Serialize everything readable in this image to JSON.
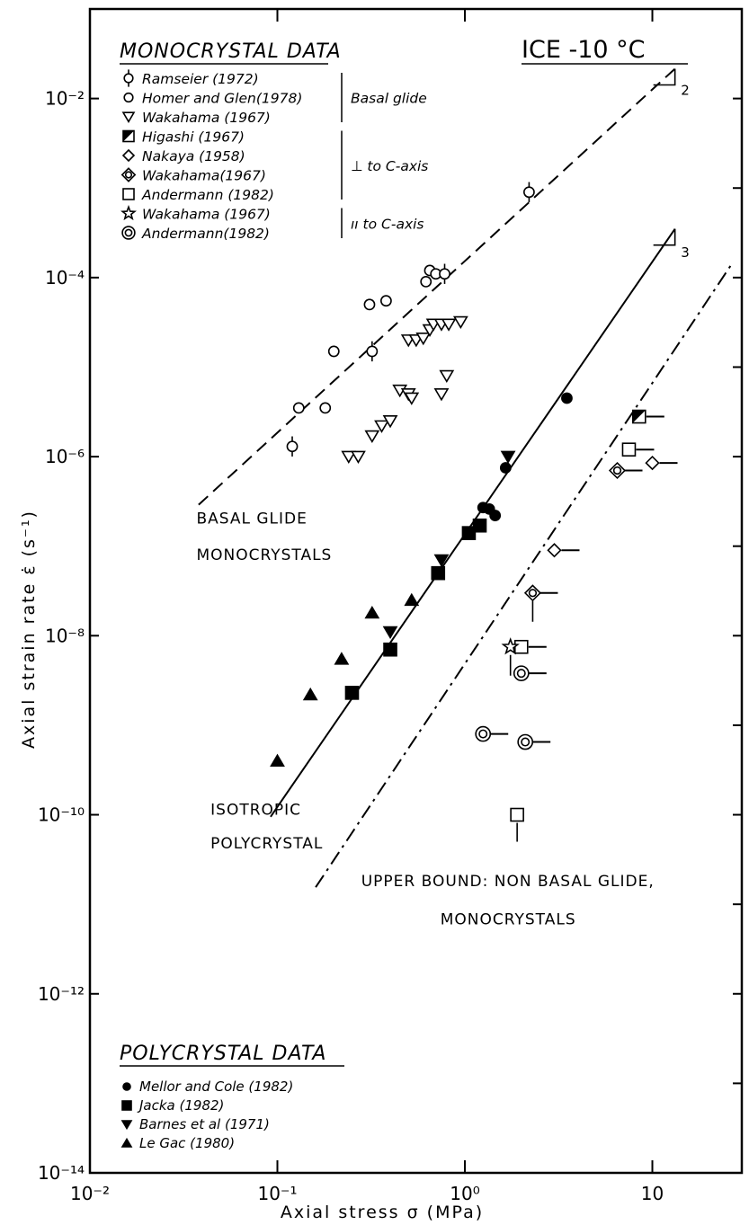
{
  "chart_data": {
    "type": "scatter",
    "title": "ICE  -10 °C",
    "xlabel": "Axial stress σ (MPa)",
    "ylabel": "Axial strain rate ε̇ (s⁻¹)",
    "x_scale": "log",
    "y_scale": "log",
    "xlim": [
      0.01,
      30
    ],
    "ylim": [
      1e-14,
      0.1
    ],
    "x_ticks": [
      {
        "v": 0.01,
        "label": "10⁻²"
      },
      {
        "v": 0.1,
        "label": "10⁻¹"
      },
      {
        "v": 1,
        "label": "10⁰"
      },
      {
        "v": 10,
        "label": "10"
      }
    ],
    "y_ticks": [
      {
        "v": 0.01,
        "label": "10⁻²"
      },
      {
        "v": 0.0001,
        "label": "10⁻⁴"
      },
      {
        "v": 1e-06,
        "label": "10⁻⁶"
      },
      {
        "v": 1e-08,
        "label": "10⁻⁸"
      },
      {
        "v": 1e-10,
        "label": "10⁻¹⁰"
      },
      {
        "v": 1e-12,
        "label": "10⁻¹²"
      },
      {
        "v": 1e-14,
        "label": "10⁻¹⁴"
      }
    ],
    "grid": false,
    "mono_legend_title": "MONOCRYSTAL  DATA",
    "mono_legend": [
      {
        "marker": "pipe-circle",
        "label": "Ramseier (1972)"
      },
      {
        "marker": "open-circle",
        "label": "Homer and Glen(1978)"
      },
      {
        "marker": "open-down-triangle",
        "label": "Wakahama (1967)"
      },
      {
        "marker": "half-square",
        "label": "Higashi (1967)"
      },
      {
        "marker": "open-diamond",
        "label": "Nakaya (1958)"
      },
      {
        "marker": "diamond-circle",
        "label": "Wakahama(1967)"
      },
      {
        "marker": "open-square",
        "label": "Andermann (1982)"
      },
      {
        "marker": "open-star",
        "label": "Wakahama (1967)"
      },
      {
        "marker": "double-circle",
        "label": "Andermann(1982)"
      }
    ],
    "mono_groups": [
      {
        "label": "Basal glide",
        "rows": [
          0,
          2
        ]
      },
      {
        "label": "⊥ to C-axis",
        "rows": [
          3,
          6
        ]
      },
      {
        "label": "ıı to C-axis",
        "rows": [
          7,
          8
        ]
      }
    ],
    "poly_legend_title": "POLYCRYSTAL  DATA",
    "poly_legend": [
      {
        "marker": "filled-circle",
        "label": "Mellor and Cole (1982)"
      },
      {
        "marker": "filled-square",
        "label": "Jacka (1982)"
      },
      {
        "marker": "filled-down-triangle",
        "label": "Barnes et al (1971)"
      },
      {
        "marker": "filled-up-triangle",
        "label": "Le Gac (1980)"
      }
    ],
    "annotations": [
      {
        "text": "BASAL GLIDE",
        "x": 0.037,
        "y": 1.8e-07
      },
      {
        "text": "MONOCRYSTALS",
        "x": 0.037,
        "y": 7e-08
      },
      {
        "text": "ISOTROPIC",
        "x": 0.044,
        "y": 1e-10
      },
      {
        "text": "POLYCRYSTAL",
        "x": 0.044,
        "y": 4.2e-11
      },
      {
        "text": "UPPER BOUND: NON BASAL GLIDE,",
        "x": 0.28,
        "y": 1.6e-11
      },
      {
        "text": "MONOCRYSTALS",
        "x": 0.74,
        "y": 6e-12
      }
    ],
    "slope_labels": [
      {
        "text": "2",
        "x": 14.2,
        "y": 0.011
      },
      {
        "text": "3",
        "x": 14.2,
        "y": 0.00017
      }
    ],
    "lines": [
      {
        "style": "dashed",
        "slope": 2,
        "from": [
          0.038,
          2.9e-07
        ],
        "to": [
          13.2,
          0.0215
        ]
      },
      {
        "style": "solid",
        "slope": 3,
        "from": [
          0.092,
          9.5e-11
        ],
        "to": [
          13.2,
          0.00035
        ]
      },
      {
        "style": "dashdot",
        "slope": 3,
        "from": [
          0.16,
          1.55e-11
        ],
        "to": [
          27,
          0.00015
        ]
      }
    ],
    "series": [
      {
        "marker": "open-circle",
        "points": [
          [
            0.13,
            3.5e-06
          ],
          [
            0.18,
            3.5e-06
          ],
          [
            0.2,
            1.5e-05
          ],
          [
            0.31,
            5e-05
          ],
          [
            0.38,
            5.5e-05
          ],
          [
            0.62,
            9e-05
          ],
          [
            0.65,
            0.00012
          ],
          [
            0.7,
            0.00011
          ]
        ]
      },
      {
        "marker": "pipe-circle",
        "points": [
          [
            0.12,
            1.3e-06
          ],
          [
            0.32,
            1.5e-05
          ],
          [
            0.78,
            0.00011
          ],
          [
            2.2,
            0.0009
          ]
        ]
      },
      {
        "marker": "open-down-triangle",
        "points": [
          [
            0.24,
            1e-06
          ],
          [
            0.27,
            1e-06
          ],
          [
            0.32,
            1.7e-06
          ],
          [
            0.36,
            2.2e-06
          ],
          [
            0.4,
            2.5e-06
          ],
          [
            0.45,
            5.5e-06
          ],
          [
            0.5,
            5e-06
          ],
          [
            0.52,
            4.5e-06
          ],
          [
            0.5,
            2e-05
          ],
          [
            0.55,
            2e-05
          ],
          [
            0.6,
            2.1e-05
          ],
          [
            0.65,
            2.6e-05
          ],
          [
            0.68,
            3e-05
          ],
          [
            0.75,
            3e-05
          ],
          [
            0.82,
            3e-05
          ],
          [
            0.95,
            3.2e-05
          ],
          [
            0.75,
            5e-06
          ],
          [
            0.8,
            8e-06
          ]
        ]
      },
      {
        "marker": "filled-circle",
        "points": [
          [
            3.5,
            4.5e-06
          ],
          [
            1.65,
            7.5e-07
          ],
          [
            1.25,
            2.7e-07
          ],
          [
            1.35,
            2.6e-07
          ],
          [
            1.45,
            2.2e-07
          ]
        ]
      },
      {
        "marker": "filled-square",
        "points": [
          [
            0.25,
            2.3e-09
          ],
          [
            0.4,
            7e-09
          ],
          [
            0.72,
            5e-08
          ],
          [
            1.05,
            1.4e-07
          ],
          [
            1.2,
            1.7e-07
          ]
        ]
      },
      {
        "marker": "filled-down-triangle",
        "points": [
          [
            0.4,
            1.1e-08
          ],
          [
            0.75,
            7e-08
          ],
          [
            1.7,
            1e-06
          ]
        ]
      },
      {
        "marker": "filled-up-triangle",
        "points": [
          [
            0.1,
            4e-10
          ],
          [
            0.15,
            2.2e-09
          ],
          [
            0.22,
            5.5e-09
          ],
          [
            0.32,
            1.8e-08
          ],
          [
            0.52,
            2.5e-08
          ]
        ]
      },
      {
        "marker": "half-square",
        "points": [
          [
            8.5,
            2.8e-06
          ]
        ]
      },
      {
        "marker": "open-square",
        "points": [
          [
            7.5,
            1.2e-06
          ],
          [
            2.0,
            7.5e-09
          ],
          [
            1.9,
            1e-10
          ]
        ]
      },
      {
        "marker": "diamond-circle",
        "points": [
          [
            6.5,
            7e-07
          ],
          [
            2.3,
            3e-08
          ]
        ]
      },
      {
        "marker": "open-diamond",
        "points": [
          [
            10,
            8.5e-07
          ],
          [
            3.0,
            9e-08
          ]
        ]
      },
      {
        "marker": "open-star",
        "points": [
          [
            1.75,
            7.5e-09
          ]
        ]
      },
      {
        "marker": "double-circle",
        "points": [
          [
            2.0,
            3.8e-09
          ],
          [
            1.25,
            8e-10
          ],
          [
            2.1,
            6.5e-10
          ]
        ]
      }
    ]
  }
}
